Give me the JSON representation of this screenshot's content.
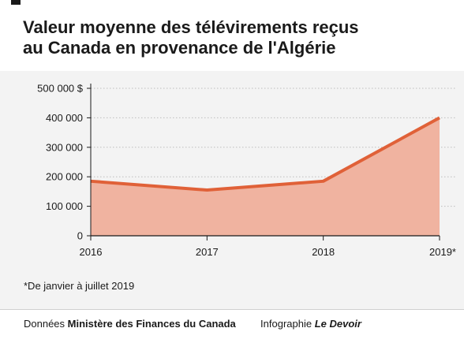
{
  "title_lines": [
    "Valeur moyenne des télévirements reçus",
    "au Canada en provenance de l'Algérie"
  ],
  "footnote": "*De janvier à juillet 2019",
  "footer": {
    "source_prefix": "Données",
    "source_name": "Ministère des Finances du Canada",
    "credit_prefix": "Infographie",
    "credit_name": "Le Devoir"
  },
  "colors": {
    "line": "#e06138",
    "area": "#f0b3a0",
    "panel": "#f3f3f3",
    "grid": "#bdbdbd"
  },
  "chart_data": {
    "type": "area",
    "title": "Valeur moyenne des télévirements reçus au Canada en provenance de l'Algérie",
    "x": [
      "2016",
      "2017",
      "2018",
      "2019*"
    ],
    "series": [
      {
        "values": [
          185000,
          155000,
          185000,
          400000
        ]
      }
    ],
    "ylim": [
      0,
      500000
    ],
    "y_ticks": [
      0,
      100000,
      200000,
      300000,
      400000,
      500000
    ],
    "y_tick_labels": [
      "0",
      "100 000",
      "200 000",
      "300 000",
      "400 000",
      "500 000 $"
    ],
    "grid": true
  }
}
